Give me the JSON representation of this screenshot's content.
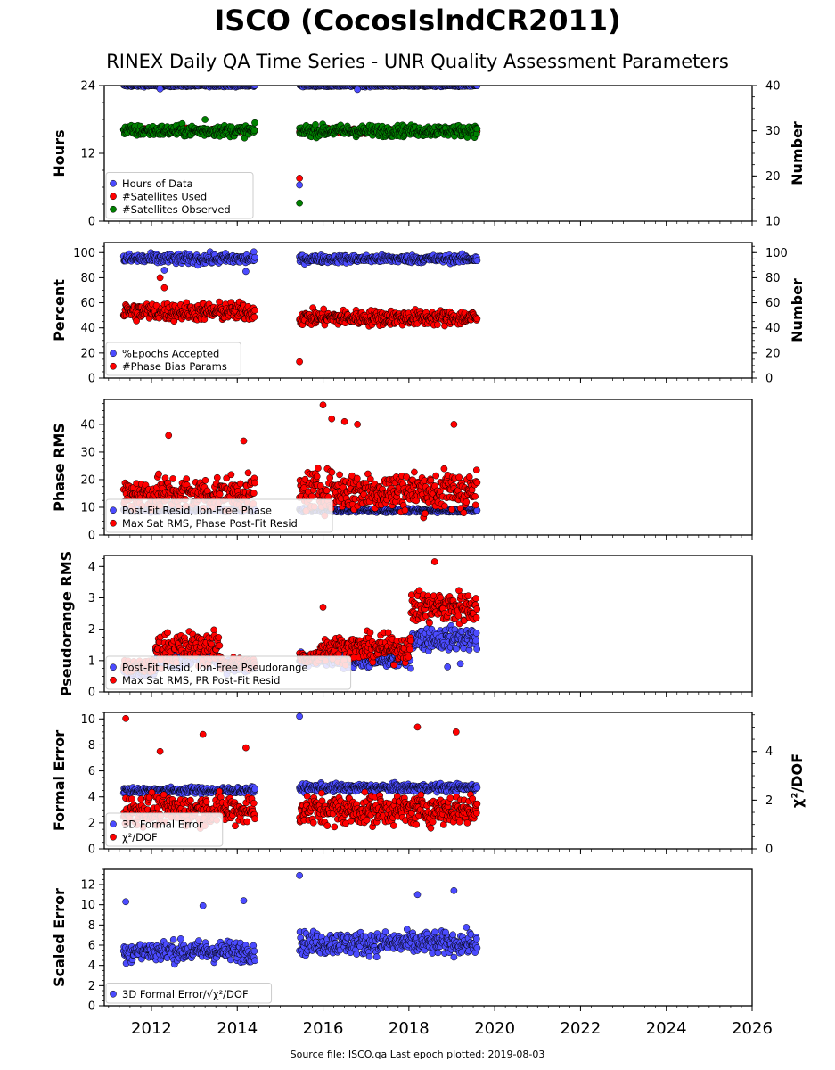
{
  "title": "ISCO (CocosIslndCR2011)",
  "subtitle": "RINEX Daily QA Time Series - UNR Quality Assessment Parameters",
  "footer": "Source file: ISCO.qa Last epoch plotted: 2019-08-03",
  "colors": {
    "blue": "#4b4bff",
    "red": "#ff0000",
    "green": "#008000",
    "edge": "#000000"
  },
  "chart_data": [
    {
      "type": "scatter",
      "ylabel": "Hours",
      "y2label": "Number",
      "ylim": [
        0,
        24
      ],
      "y2lim": [
        10,
        40
      ],
      "yticks": [
        0,
        12,
        24
      ],
      "y2ticks": [
        10,
        20,
        30,
        40
      ],
      "legend": [
        "Hours of Data",
        "#Satellites Used",
        "#Satellites Observed"
      ],
      "legend_location": "lower-left",
      "series": [
        {
          "name": "Hours of Data",
          "color": "blue",
          "axis": "left",
          "segments": [
            {
              "x": [
                2011.35,
                2014.42
              ],
              "level": 24,
              "spread": 0.2
            },
            {
              "x": [
                2015.45,
                2019.59
              ],
              "level": 24,
              "spread": 0.2
            }
          ],
          "outliers": [
            [
              2012.2,
              23.4
            ],
            [
              2016.8,
              23.3
            ],
            [
              2015.45,
              6.4
            ]
          ]
        },
        {
          "name": "#Satellites Used",
          "color": "red",
          "axis": "right",
          "segments": [
            {
              "x": [
                2011.35,
                2014.42
              ],
              "level": 30,
              "spread": 0.5
            },
            {
              "x": [
                2015.45,
                2019.59
              ],
              "level": 30,
              "spread": 0.5
            }
          ],
          "outliers": [
            [
              2015.45,
              19.5
            ]
          ]
        },
        {
          "name": "#Satellites Observed",
          "color": "green",
          "axis": "right",
          "segments": [
            {
              "x": [
                2011.35,
                2014.42
              ],
              "level": 30,
              "spread": 1.2
            },
            {
              "x": [
                2015.45,
                2019.59
              ],
              "level": 30,
              "spread": 1.2
            }
          ],
          "outliers": [
            [
              2013.25,
              32.5
            ],
            [
              2015.45,
              14
            ]
          ]
        }
      ]
    },
    {
      "type": "scatter",
      "ylabel": "Percent",
      "y2label": "Number",
      "ylim": [
        0,
        108
      ],
      "y2lim": [
        0,
        108
      ],
      "yticks": [
        0,
        20,
        40,
        60,
        80,
        100
      ],
      "y2ticks": [
        0,
        20,
        40,
        60,
        80,
        100
      ],
      "legend": [
        "%Epochs Accepted",
        "#Phase Bias Params"
      ],
      "legend_location": "lower-left",
      "series": [
        {
          "name": "%Epochs Accepted",
          "color": "blue",
          "axis": "left",
          "segments": [
            {
              "x": [
                2011.35,
                2014.42
              ],
              "level": 95,
              "spread": 4
            },
            {
              "x": [
                2015.45,
                2019.59
              ],
              "level": 95,
              "spread": 3
            }
          ],
          "outliers": [
            [
              2012.3,
              86
            ],
            [
              2014.2,
              85
            ]
          ]
        },
        {
          "name": "#Phase Bias Params",
          "color": "red",
          "axis": "right",
          "segments": [
            {
              "x": [
                2011.35,
                2014.42
              ],
              "level": 53,
              "spread": 7
            },
            {
              "x": [
                2015.45,
                2019.59
              ],
              "level": 48,
              "spread": 6
            }
          ],
          "outliers": [
            [
              2012.2,
              80
            ],
            [
              2012.3,
              72
            ],
            [
              2015.45,
              13
            ]
          ]
        }
      ]
    },
    {
      "type": "scatter",
      "ylabel": "Phase RMS",
      "ylim": [
        0,
        49
      ],
      "yticks": [
        0,
        10,
        20,
        30,
        40
      ],
      "legend": [
        "Post-Fit Resid, Ion-Free Phase",
        "Max Sat RMS, Phase Post-Fit Resid"
      ],
      "legend_location": "lower-left",
      "series": [
        {
          "name": "Post-Fit Resid, Ion-Free Phase",
          "color": "blue",
          "segments": [
            {
              "x": [
                2011.35,
                2014.42
              ],
              "level": 9,
              "spread": 0.6
            },
            {
              "x": [
                2015.45,
                2019.59
              ],
              "level": 8.8,
              "spread": 0.6
            }
          ],
          "outliers": []
        },
        {
          "name": "Max Sat RMS, Phase Post-Fit Resid",
          "color": "red",
          "segments": [
            {
              "x": [
                2011.35,
                2014.42
              ],
              "level": 15,
              "spread": 6
            },
            {
              "x": [
                2015.45,
                2019.59
              ],
              "level": 16,
              "spread": 7
            }
          ],
          "outliers": [
            [
              2016.0,
              47
            ],
            [
              2016.2,
              42
            ],
            [
              2016.5,
              41
            ],
            [
              2012.4,
              36
            ],
            [
              2014.15,
              34
            ],
            [
              2019.05,
              40
            ],
            [
              2016.8,
              40
            ]
          ]
        }
      ]
    },
    {
      "type": "scatter",
      "ylabel": "Pseudorange RMS",
      "ylim": [
        0,
        4.35
      ],
      "yticks": [
        0,
        1,
        2,
        3,
        4
      ],
      "legend": [
        "Post-Fit Resid, Ion-Free Pseudorange",
        "Max Sat RMS, PR Post-Fit Resid"
      ],
      "legend_location": "lower-left",
      "series": [
        {
          "name": "Post-Fit Resid, Ion-Free Pseudorange",
          "color": "blue",
          "segments": [
            {
              "x": [
                2011.35,
                2012.1
              ],
              "level": 0.7,
              "spread": 0.15
            },
            {
              "x": [
                2012.1,
                2013.6
              ],
              "level": 1.1,
              "spread": 0.3
            },
            {
              "x": [
                2013.6,
                2014.42
              ],
              "level": 0.8,
              "spread": 0.2
            },
            {
              "x": [
                2015.45,
                2018.05
              ],
              "level": 1.0,
              "spread": 0.2
            },
            {
              "x": [
                2018.05,
                2019.59
              ],
              "level": 1.7,
              "spread": 0.35
            }
          ],
          "outliers": [
            [
              2018.9,
              0.8
            ],
            [
              2019.2,
              0.9
            ]
          ]
        },
        {
          "name": "Max Sat RMS, PR Post-Fit Resid",
          "color": "red",
          "segments": [
            {
              "x": [
                2011.35,
                2012.1
              ],
              "level": 0.8,
              "spread": 0.2
            },
            {
              "x": [
                2012.1,
                2013.6
              ],
              "level": 1.4,
              "spread": 0.5
            },
            {
              "x": [
                2013.6,
                2014.42
              ],
              "level": 0.9,
              "spread": 0.2
            },
            {
              "x": [
                2015.45,
                2015.9
              ],
              "level": 1.1,
              "spread": 0.2
            },
            {
              "x": [
                2015.9,
                2018.05
              ],
              "level": 1.4,
              "spread": 0.4
            },
            {
              "x": [
                2018.05,
                2019.59
              ],
              "level": 2.7,
              "spread": 0.5
            }
          ],
          "outliers": [
            [
              2018.6,
              4.15
            ],
            [
              2016.0,
              2.7
            ]
          ]
        }
      ]
    },
    {
      "type": "scatter",
      "ylabel": "Formal Error",
      "y2label": "χ²/DOF",
      "ylim": [
        0,
        10.5
      ],
      "y2lim": [
        0,
        5.6
      ],
      "yticks": [
        0,
        2,
        4,
        6,
        8,
        10
      ],
      "y2ticks": [
        0,
        2,
        4
      ],
      "legend": [
        "3D Formal Error",
        "χ²/DOF"
      ],
      "legend_location": "lower-left",
      "series": [
        {
          "name": "3D Formal Error",
          "color": "blue",
          "axis": "left",
          "segments": [
            {
              "x": [
                2011.35,
                2014.42
              ],
              "level": 4.5,
              "spread": 0.25
            },
            {
              "x": [
                2015.45,
                2019.59
              ],
              "level": 4.7,
              "spread": 0.3
            }
          ],
          "outliers": [
            [
              2015.45,
              10.2
            ]
          ]
        },
        {
          "name": "χ²/DOF",
          "color": "red",
          "axis": "right",
          "segments": [
            {
              "x": [
                2011.35,
                2014.42
              ],
              "level": 1.6,
              "spread": 0.6
            },
            {
              "x": [
                2015.45,
                2019.59
              ],
              "level": 1.6,
              "spread": 0.6
            }
          ],
          "outliers": [
            [
              2011.4,
              5.35
            ],
            [
              2013.2,
              4.7
            ],
            [
              2014.2,
              4.15
            ],
            [
              2018.2,
              5.0
            ],
            [
              2019.1,
              4.8
            ],
            [
              2012.2,
              4.0
            ]
          ]
        }
      ]
    },
    {
      "type": "scatter",
      "ylabel": "Scaled Error",
      "ylim": [
        0,
        13.5
      ],
      "yticks": [
        0,
        2,
        4,
        6,
        8,
        10,
        12
      ],
      "legend": [
        "3D Formal Error/√χ²/DOF"
      ],
      "legend_location": "lower-left",
      "series": [
        {
          "name": "3D Formal Error/√χ²/DOF",
          "color": "blue",
          "segments": [
            {
              "x": [
                2011.35,
                2014.42
              ],
              "level": 5.4,
              "spread": 1.0
            },
            {
              "x": [
                2015.45,
                2019.59
              ],
              "level": 6.2,
              "spread": 1.1
            }
          ],
          "outliers": [
            [
              2015.45,
              12.9
            ],
            [
              2011.4,
              10.3
            ],
            [
              2014.15,
              10.4
            ],
            [
              2018.2,
              11.0
            ],
            [
              2019.05,
              11.4
            ],
            [
              2013.2,
              9.9
            ]
          ]
        }
      ]
    }
  ],
  "x_axis": {
    "xlim": [
      2010.9,
      2026.0
    ],
    "ticks": [
      2012,
      2014,
      2016,
      2018,
      2020,
      2022,
      2024,
      2026
    ]
  }
}
